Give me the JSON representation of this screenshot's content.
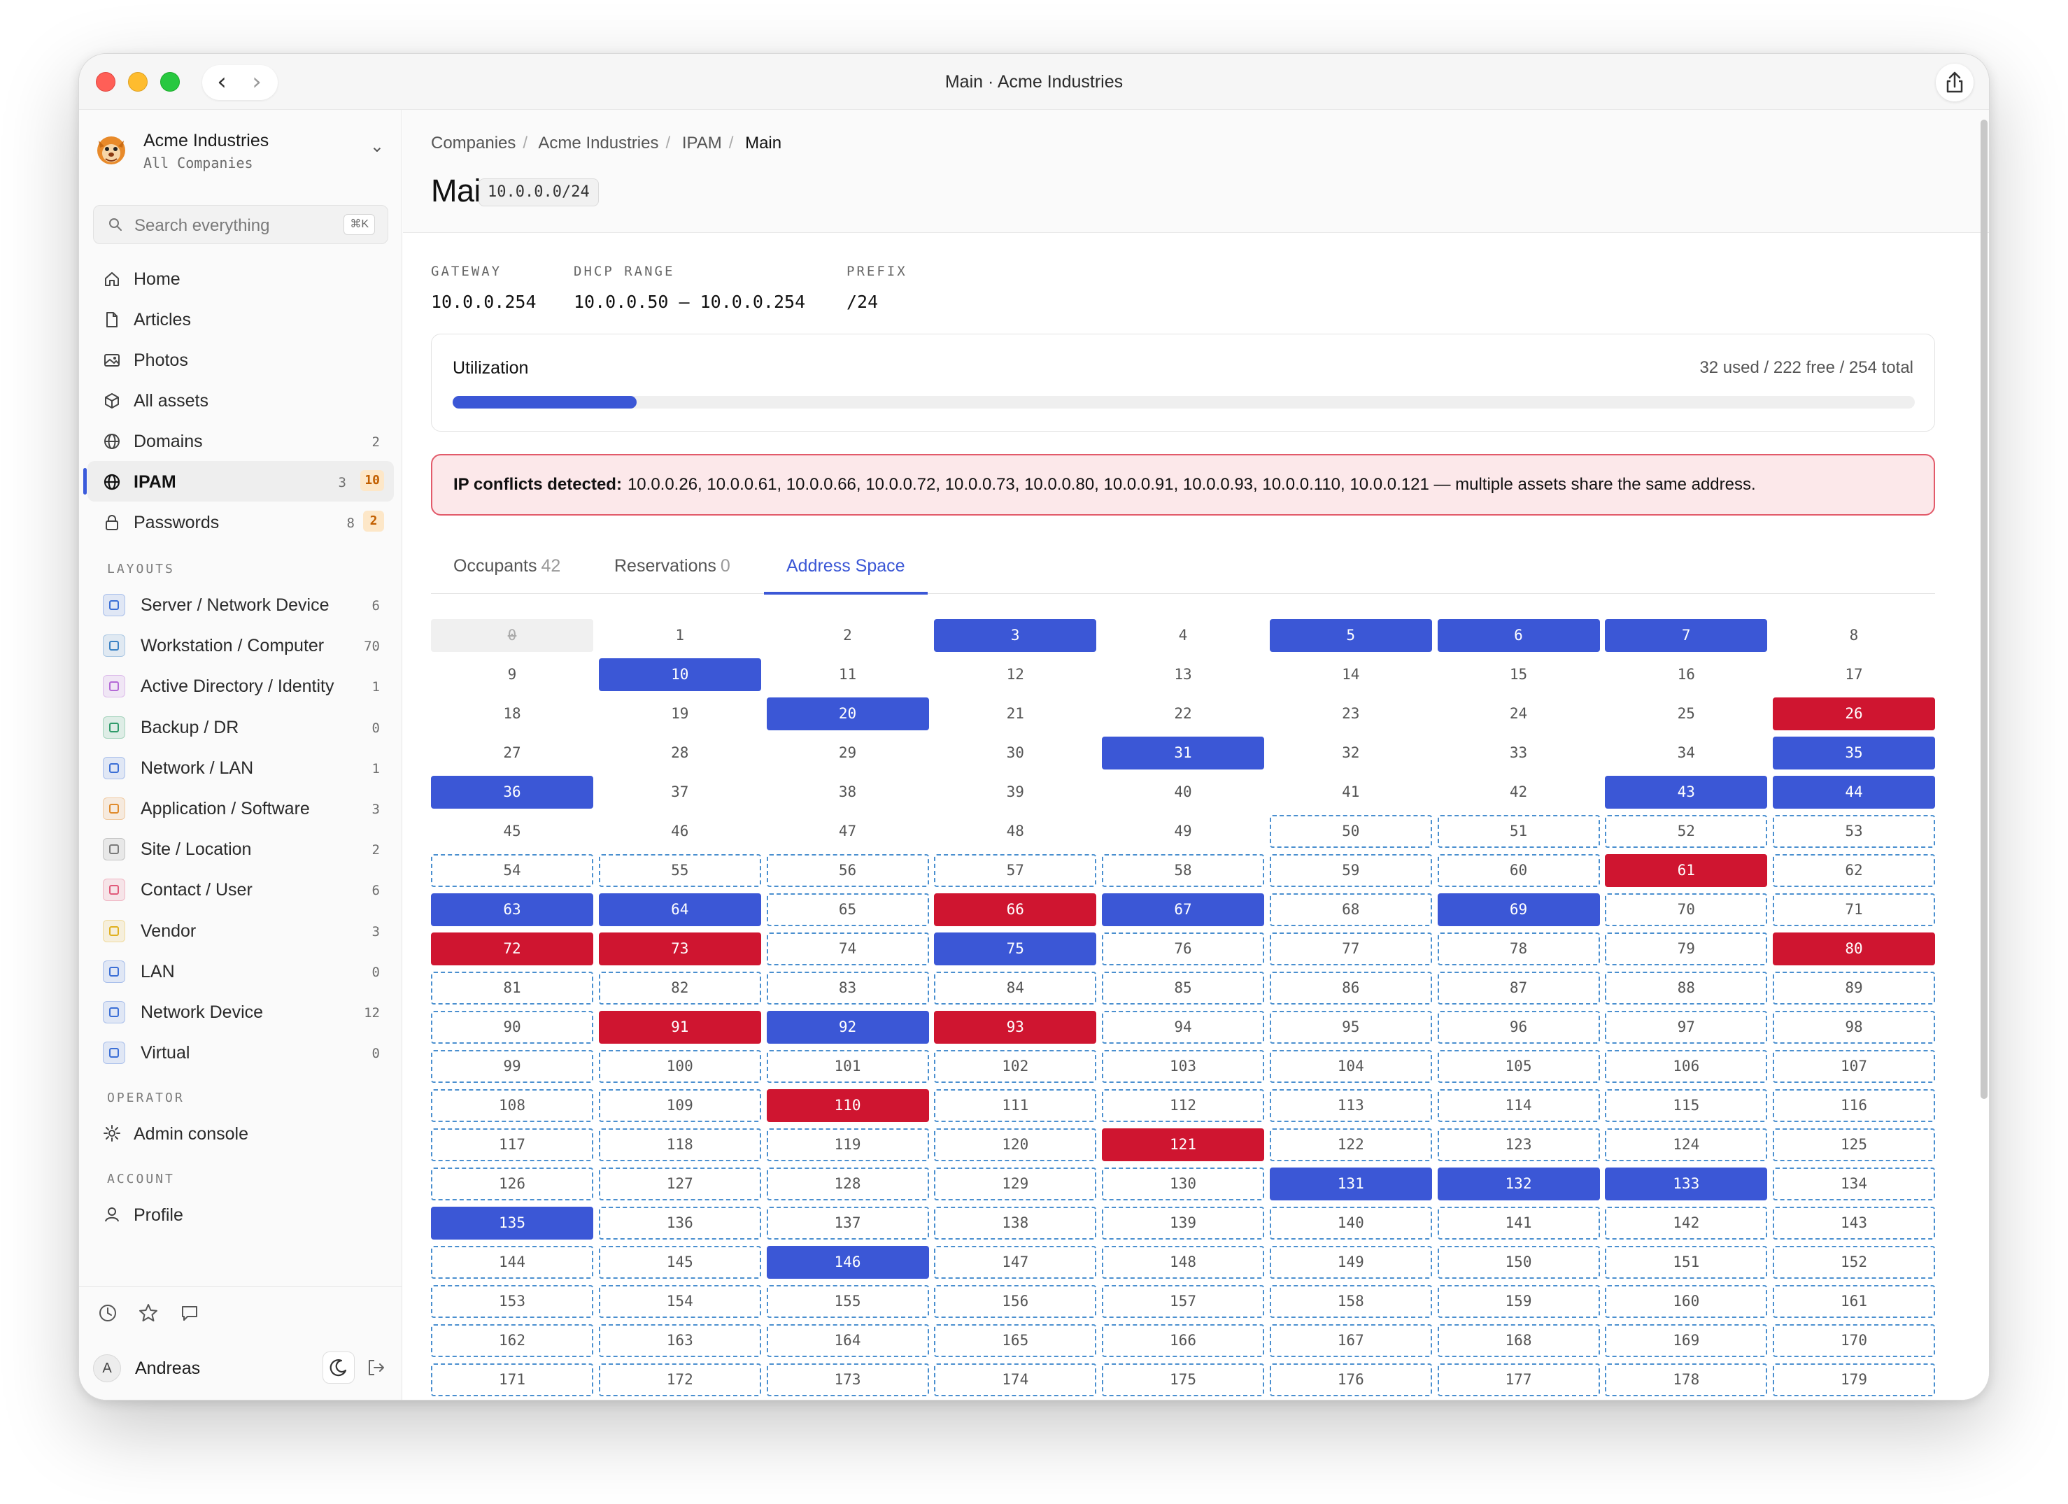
{
  "window": {
    "title": "Main · Acme Industries"
  },
  "org": {
    "name": "Acme Industries",
    "sub": "All Companies"
  },
  "search": {
    "placeholder": "Search everything",
    "shortcut": "⌘K"
  },
  "nav": [
    {
      "label": "Home",
      "icon": "home-icon",
      "count": "",
      "badge": ""
    },
    {
      "label": "Articles",
      "icon": "document-icon",
      "count": "",
      "badge": ""
    },
    {
      "label": "Photos",
      "icon": "image-icon",
      "count": "",
      "badge": ""
    },
    {
      "label": "All assets",
      "icon": "box-icon",
      "count": "",
      "badge": ""
    },
    {
      "label": "Domains",
      "icon": "globe-icon",
      "count": "2",
      "badge": ""
    },
    {
      "label": "IPAM",
      "icon": "globe-icon",
      "count": "3",
      "badge": "10"
    },
    {
      "label": "Passwords",
      "icon": "lock-icon",
      "count": "8",
      "badge": "2"
    }
  ],
  "sections": {
    "layouts": "LAYOUTS",
    "operator": "OPERATOR",
    "account": "ACCOUNT"
  },
  "layouts": [
    {
      "label": "Server / Network Device",
      "count": "6",
      "color": "#3b6fd6"
    },
    {
      "label": "Workstation / Computer",
      "count": "70",
      "color": "#3b82c4"
    },
    {
      "label": "Active Directory / Identity",
      "count": "1",
      "color": "#b46ad6"
    },
    {
      "label": "Backup / DR",
      "count": "0",
      "color": "#2f9b6a"
    },
    {
      "label": "Network / LAN",
      "count": "1",
      "color": "#3b6fd6"
    },
    {
      "label": "Application / Software",
      "count": "3",
      "color": "#e08a2a"
    },
    {
      "label": "Site / Location",
      "count": "2",
      "color": "#7a7a7a"
    },
    {
      "label": "Contact / User",
      "count": "6",
      "color": "#e05a7a"
    },
    {
      "label": "Vendor",
      "count": "3",
      "color": "#e0b020"
    },
    {
      "label": "LAN",
      "count": "0",
      "color": "#3b6fd6"
    },
    {
      "label": "Network Device",
      "count": "12",
      "color": "#3b6fd6"
    },
    {
      "label": "Virtual",
      "count": "0",
      "color": "#3b6fd6"
    }
  ],
  "operator": {
    "label": "Admin console"
  },
  "account": {
    "label": "Profile"
  },
  "user": {
    "name": "Andreas",
    "initial": "A"
  },
  "breadcrumbs": [
    "Companies",
    "Acme Industries",
    "IPAM",
    "Main"
  ],
  "page": {
    "title": "Main",
    "cidr": "10.0.0.0/24"
  },
  "meta": [
    {
      "key": "GATEWAY",
      "value": "10.0.0.254"
    },
    {
      "key": "DHCP RANGE",
      "value": "10.0.0.50 – 10.0.0.254"
    },
    {
      "key": "PREFIX",
      "value": "/24"
    }
  ],
  "utilization": {
    "label": "Utilization",
    "summary": "32 used / 222 free / 254 total",
    "used": 32,
    "total": 254
  },
  "alert": {
    "title": "IP conflicts detected:",
    "text": "10.0.0.26, 10.0.0.61, 10.0.0.66, 10.0.0.72, 10.0.0.73, 10.0.0.80, 10.0.0.91, 10.0.0.93, 10.0.0.110, 10.0.0.121 — multiple assets share the same address."
  },
  "tabs": [
    {
      "label": "Occupants",
      "count": "42"
    },
    {
      "label": "Reservations",
      "count": "0"
    },
    {
      "label": "Address Space",
      "count": ""
    }
  ],
  "address_space": {
    "shown_from": 0,
    "shown_to": 179,
    "network": [
      0
    ],
    "dhcp_start": 50,
    "used": [
      3,
      5,
      6,
      7,
      10,
      20,
      31,
      35,
      36,
      43,
      44,
      63,
      64,
      67,
      69,
      75,
      92,
      131,
      132,
      133,
      135,
      146
    ],
    "conflict": [
      26,
      61,
      66,
      72,
      73,
      80,
      91,
      93,
      110,
      121
    ]
  },
  "colors": {
    "accent": "#3b57d6",
    "conflict": "#cf1530",
    "dhcp_border": "#4a8fcf"
  }
}
